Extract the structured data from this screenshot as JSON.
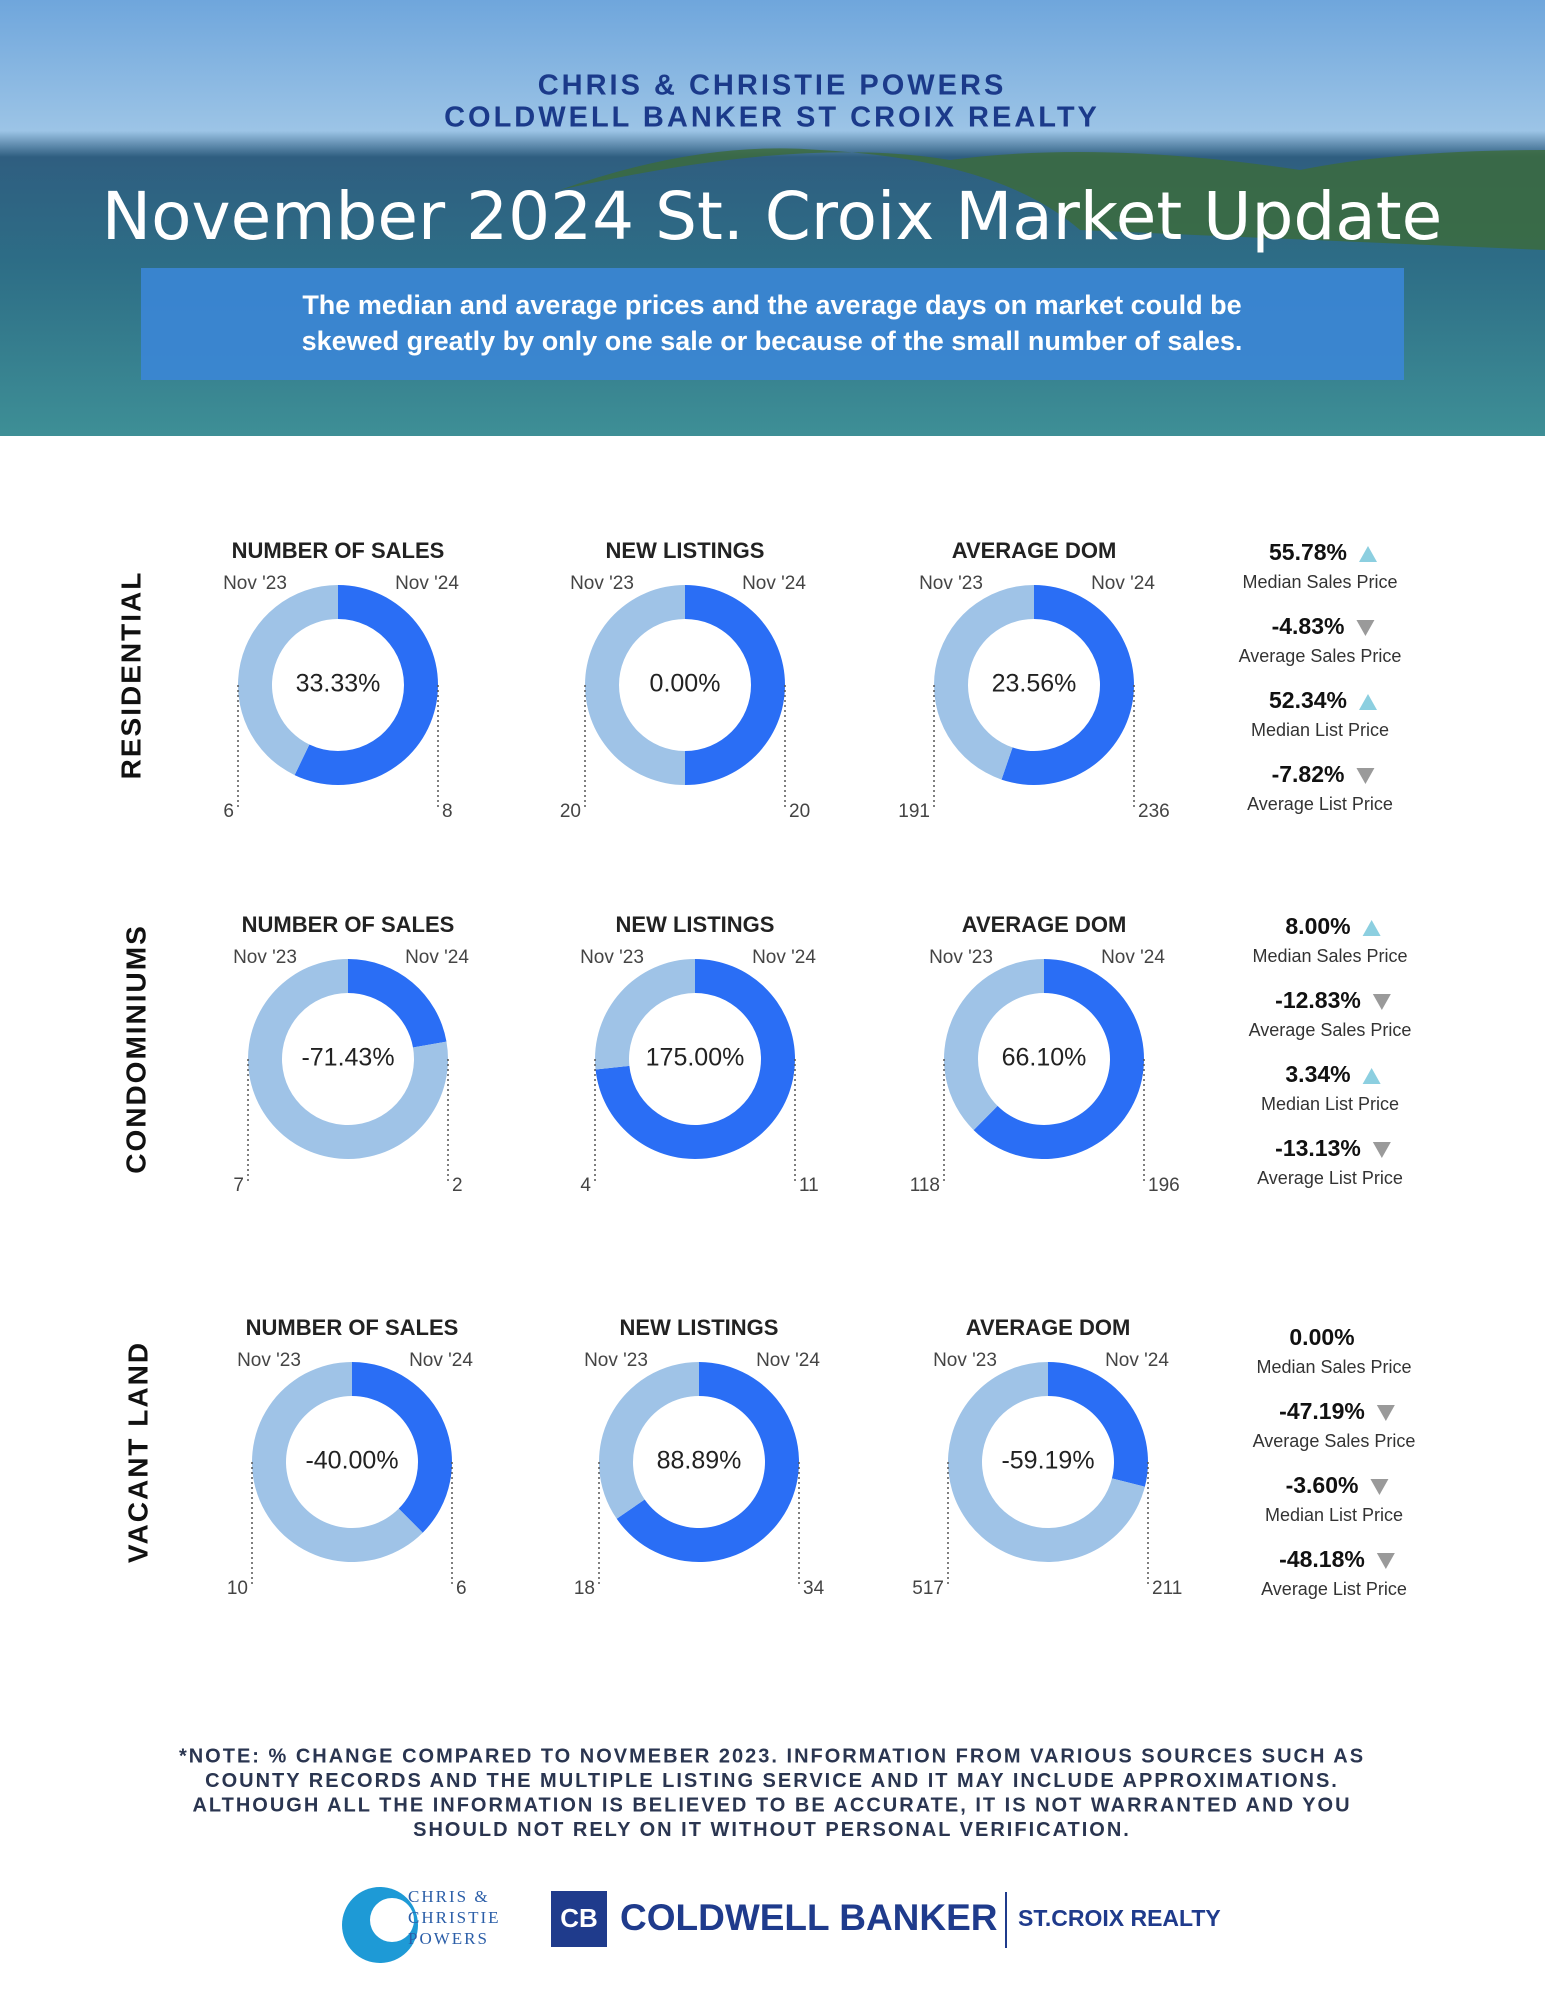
{
  "header": {
    "line1": "CHRIS & CHRISTIE POWERS",
    "line2": "COLDWELL BANKER ST CROIX REALTY",
    "title": "November 2024 St. Croix Market Update",
    "banner": [
      "The median and average prices and  the average days on market could be",
      "skewed greatly by only one sale or because of the small number of sales."
    ]
  },
  "colors": {
    "previous": "#9fc3e7",
    "current": "#2a6ef5",
    "up": "#8ccfe0",
    "down": "#9a9a9a"
  },
  "sections": [
    {
      "label": "RESIDENTIAL",
      "donuts": [
        {
          "title": "NUMBER OF SALES",
          "left_label": "Nov '23",
          "right_label": "Nov '24",
          "change": "33.33%",
          "previous": 6,
          "current": 8
        },
        {
          "title": "NEW LISTINGS",
          "left_label": "Nov '23",
          "right_label": "Nov '24",
          "change": "0.00%",
          "previous": 20,
          "current": 20
        },
        {
          "title": "AVERAGE DOM",
          "left_label": "Nov '23",
          "right_label": "Nov '24",
          "change": "23.56%",
          "previous": 191,
          "current": 236
        }
      ],
      "stats": [
        {
          "value": "55.78%",
          "label": "Median Sales Price",
          "trend": "up"
        },
        {
          "value": "-4.83%",
          "label": "Average Sales Price",
          "trend": "down"
        },
        {
          "value": "52.34%",
          "label": "Median List Price",
          "trend": "up"
        },
        {
          "value": "-7.82%",
          "label": "Average List Price",
          "trend": "down"
        }
      ]
    },
    {
      "label": "CONDOMINIUMS",
      "donuts": [
        {
          "title": "NUMBER OF SALES",
          "left_label": "Nov '23",
          "right_label": "Nov '24",
          "change": "-71.43%",
          "previous": 7,
          "current": 2
        },
        {
          "title": "NEW LISTINGS",
          "left_label": "Nov '23",
          "right_label": "Nov '24",
          "change": "175.00%",
          "previous": 4,
          "current": 11
        },
        {
          "title": "AVERAGE DOM",
          "left_label": "Nov '23",
          "right_label": "Nov '24",
          "change": "66.10%",
          "previous": 118,
          "current": 196
        }
      ],
      "stats": [
        {
          "value": "8.00%",
          "label": "Median Sales Price",
          "trend": "up"
        },
        {
          "value": "-12.83%",
          "label": "Average Sales Price",
          "trend": "down"
        },
        {
          "value": "3.34%",
          "label": "Median List Price",
          "trend": "up"
        },
        {
          "value": "-13.13%",
          "label": "Average List Price",
          "trend": "down"
        }
      ]
    },
    {
      "label": "VACANT LAND",
      "donuts": [
        {
          "title": "NUMBER OF SALES",
          "left_label": "Nov '23",
          "right_label": "Nov '24",
          "change": "-40.00%",
          "previous": 10,
          "current": 6
        },
        {
          "title": "NEW LISTINGS",
          "left_label": "Nov '23",
          "right_label": "Nov '24",
          "change": "88.89%",
          "previous": 18,
          "current": 34
        },
        {
          "title": "AVERAGE DOM",
          "left_label": "Nov '23",
          "right_label": "Nov '24",
          "change": "-59.19%",
          "previous": 517,
          "current": 211
        }
      ],
      "stats": [
        {
          "value": "0.00%",
          "label": "Median Sales Price"
        },
        {
          "value": "-47.19%",
          "label": "Average Sales Price",
          "trend": "down"
        },
        {
          "value": "-3.60%",
          "label": "Median List Price",
          "trend": "down"
        },
        {
          "value": "-48.18%",
          "label": "Average List Price",
          "trend": "down"
        }
      ]
    }
  ],
  "note": [
    "*NOTE: % CHANGE COMPARED TO NOVMEBER 2023. INFORMATION FROM VARIOUS SOURCES SUCH AS",
    "COUNTY RECORDS AND THE MULTIPLE LISTING SERVICE AND IT MAY INCLUDE APPROXIMATIONS.",
    "ALTHOUGH ALL THE INFORMATION IS BELIEVED TO BE ACCURATE, IT IS NOT WARRANTED AND YOU",
    "SHOULD NOT RELY ON IT WITHOUT PERSONAL VERIFICATION."
  ],
  "footer": {
    "team": [
      "CHRIS &",
      "CHRISTIE",
      "POWERS"
    ],
    "brand": "COLDWELL BANKER",
    "office": "ST.CROIX REALTY"
  }
}
